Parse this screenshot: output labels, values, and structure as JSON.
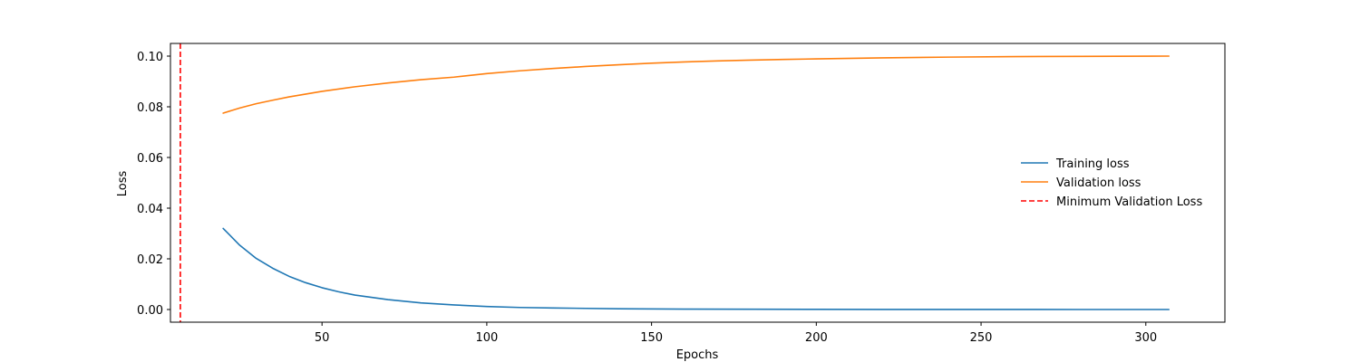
{
  "chart_data": {
    "type": "line",
    "title": "",
    "xlabel": "Epochs",
    "ylabel": "Loss",
    "xlim": [
      4,
      324
    ],
    "ylim": [
      -0.005,
      0.105
    ],
    "x_ticks": [
      50,
      100,
      150,
      200,
      250,
      300
    ],
    "x_tick_labels": [
      "50",
      "100",
      "150",
      "200",
      "250",
      "300"
    ],
    "y_ticks": [
      0.0,
      0.02,
      0.04,
      0.06,
      0.08,
      0.1
    ],
    "y_tick_labels": [
      "0.00",
      "0.02",
      "0.04",
      "0.06",
      "0.08",
      "0.10"
    ],
    "grid": false,
    "legend_position": "center-right",
    "series": [
      {
        "name": "Training loss",
        "color": "#1f77b4",
        "style": "solid",
        "x": [
          20,
          25,
          30,
          35,
          40,
          45,
          50,
          55,
          60,
          70,
          80,
          90,
          100,
          110,
          120,
          140,
          160,
          180,
          200,
          220,
          250,
          280,
          307
        ],
        "values": [
          0.032,
          0.0254,
          0.0202,
          0.0163,
          0.0131,
          0.0106,
          0.0086,
          0.007,
          0.0057,
          0.0039,
          0.0026,
          0.0018,
          0.0012,
          0.0008,
          0.0006,
          0.0003,
          0.00015,
          0.0001,
          5e-05,
          3e-05,
          1e-05,
          0.0,
          0.0
        ]
      },
      {
        "name": "Validation loss",
        "color": "#ff7f0e",
        "style": "solid",
        "x": [
          20,
          25,
          30,
          35,
          40,
          50,
          60,
          70,
          80,
          90,
          100,
          110,
          120,
          130,
          140,
          150,
          160,
          170,
          180,
          190,
          200,
          220,
          240,
          260,
          280,
          307
        ],
        "values": [
          0.0775,
          0.0795,
          0.0812,
          0.0826,
          0.0839,
          0.0861,
          0.0879,
          0.0894,
          0.0907,
          0.0917,
          0.0931,
          0.0942,
          0.0951,
          0.0959,
          0.0966,
          0.0972,
          0.0977,
          0.0981,
          0.0984,
          0.0987,
          0.0989,
          0.0993,
          0.0996,
          0.0998,
          0.0999,
          0.1
        ]
      }
    ],
    "vlines": [
      {
        "name": "Minimum Validation Loss",
        "x": 7,
        "color": "#ff0000",
        "style": "dashed"
      }
    ]
  }
}
